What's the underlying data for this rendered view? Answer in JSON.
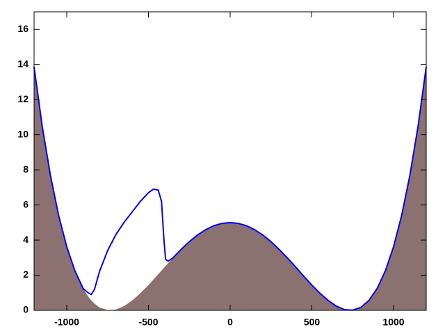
{
  "chart_data": {
    "type": "line",
    "x": [
      -1200,
      -1150,
      -1100,
      -1050,
      -1000,
      -950,
      -900,
      -870,
      -850,
      -830,
      -800,
      -750,
      -700,
      -650,
      -600,
      -550,
      -500,
      -470,
      -440,
      -420,
      -405,
      -395,
      -380,
      -350,
      -300,
      -250,
      -200,
      -150,
      -100,
      -50,
      0,
      50,
      100,
      150,
      200,
      250,
      300,
      350,
      400,
      450,
      500,
      550,
      600,
      650,
      700,
      750,
      800,
      850,
      900,
      950,
      1000,
      1050,
      1100,
      1150,
      1200
    ],
    "series": [
      {
        "style": "filled",
        "color": "#8b7170",
        "values": [
          13.87,
          10.48,
          7.69,
          5.42,
          3.62,
          2.25,
          1.25,
          0.8,
          0.57,
          0.38,
          0.17,
          0.01,
          0.04,
          0.24,
          0.56,
          0.97,
          1.44,
          1.75,
          2.06,
          2.27,
          2.42,
          2.53,
          2.68,
          2.99,
          3.47,
          3.91,
          4.29,
          4.59,
          4.82,
          4.95,
          5,
          4.95,
          4.82,
          4.59,
          4.29,
          3.91,
          3.47,
          2.99,
          2.48,
          1.95,
          1.44,
          0.97,
          0.56,
          0.24,
          0.04,
          0.01,
          0.17,
          0.57,
          1.25,
          2.25,
          3.62,
          5.42,
          7.69,
          10.48,
          13.87
        ]
      },
      {
        "style": "line",
        "color": "#0000ff",
        "values": [
          13.87,
          10.48,
          7.69,
          5.42,
          3.62,
          2.25,
          1.25,
          1.0,
          0.9,
          1.2,
          2.2,
          3.4,
          4.3,
          5.0,
          5.6,
          6.2,
          6.7,
          6.9,
          6.85,
          6.2,
          4.0,
          2.9,
          2.8,
          2.99,
          3.47,
          3.91,
          4.29,
          4.59,
          4.82,
          4.95,
          5,
          4.95,
          4.82,
          4.59,
          4.29,
          3.91,
          3.47,
          2.99,
          2.48,
          1.95,
          1.44,
          0.97,
          0.56,
          0.24,
          0.04,
          0.01,
          0.17,
          0.57,
          1.25,
          2.25,
          3.62,
          5.42,
          7.69,
          10.48,
          13.87
        ]
      }
    ],
    "xlim": [
      -1200,
      1200
    ],
    "xticks": [
      -1000,
      -500,
      0,
      500,
      1000
    ],
    "ylim": [
      0,
      17
    ],
    "yticks": [
      0,
      2,
      4,
      6,
      8,
      10,
      12,
      14,
      16
    ]
  }
}
